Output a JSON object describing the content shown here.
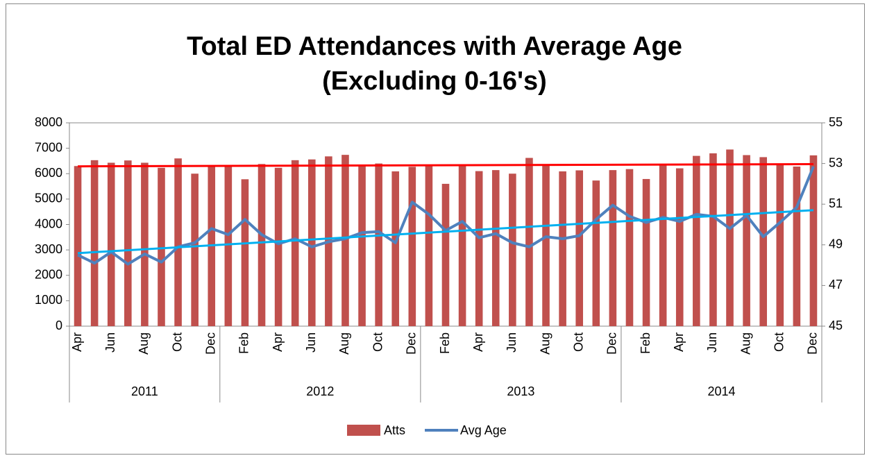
{
  "chart_data": {
    "type": "bar",
    "title": "Total ED Attendances with Average Age (Excluding 0-16's)",
    "categories": [
      "Apr",
      null,
      "Jun",
      null,
      "Aug",
      null,
      "Oct",
      null,
      "Dec",
      null,
      "Feb",
      null,
      "Apr",
      null,
      "Jun",
      null,
      "Aug",
      null,
      "Oct",
      null,
      "Dec",
      null,
      "Feb",
      null,
      "Apr",
      null,
      "Jun",
      null,
      "Aug",
      null,
      "Oct",
      null,
      "Dec",
      null,
      "Feb",
      null,
      "Apr",
      null,
      "Jun",
      null,
      "Aug",
      null,
      "Oct",
      null,
      "Dec"
    ],
    "groups": [
      {
        "name": "2011",
        "categories": 9
      },
      {
        "name": "2012",
        "categories": 12
      },
      {
        "name": "2013",
        "categories": 12
      },
      {
        "name": "2014",
        "categories": 12
      }
    ],
    "series": [
      {
        "name": "Atts",
        "type": "bar",
        "color": "#c0504d",
        "trendline_color": "#ff0000",
        "values": [
          6300,
          6530,
          6430,
          6520,
          6430,
          6230,
          6600,
          6000,
          6300,
          6310,
          5780,
          6380,
          6230,
          6530,
          6560,
          6680,
          6740,
          6330,
          6400,
          6090,
          6270,
          6330,
          5600,
          6350,
          6100,
          6140,
          6000,
          6620,
          6320,
          6090,
          6130,
          5730,
          6140,
          6180,
          5790,
          6380,
          6210,
          6700,
          6800,
          6950,
          6730,
          6650,
          6350,
          6280,
          6720
        ]
      },
      {
        "name": "Avg Age",
        "type": "line",
        "axis": "y2",
        "color": "#4f81bd",
        "trendline_color": "#00b0f0",
        "values": [
          48.5,
          48.1,
          48.65,
          48.05,
          48.55,
          48.15,
          48.9,
          49.1,
          49.8,
          49.5,
          50.25,
          49.5,
          49.05,
          49.3,
          48.9,
          49.15,
          49.3,
          49.6,
          49.65,
          49.1,
          51.1,
          50.5,
          49.7,
          50.15,
          49.35,
          49.55,
          49.1,
          48.9,
          49.4,
          49.3,
          49.45,
          50.25,
          50.95,
          50.4,
          50.1,
          50.35,
          50.15,
          50.5,
          50.4,
          49.8,
          50.45,
          49.4,
          50.1,
          50.85,
          52.85
        ]
      }
    ],
    "ylim": [
      0,
      8000
    ],
    "yticks": [
      0,
      1000,
      2000,
      3000,
      4000,
      5000,
      6000,
      7000,
      8000
    ],
    "y2lim": [
      45,
      55
    ],
    "y2ticks": [
      45,
      47,
      49,
      51,
      53,
      55
    ],
    "grid": false,
    "legend": "bottom"
  }
}
